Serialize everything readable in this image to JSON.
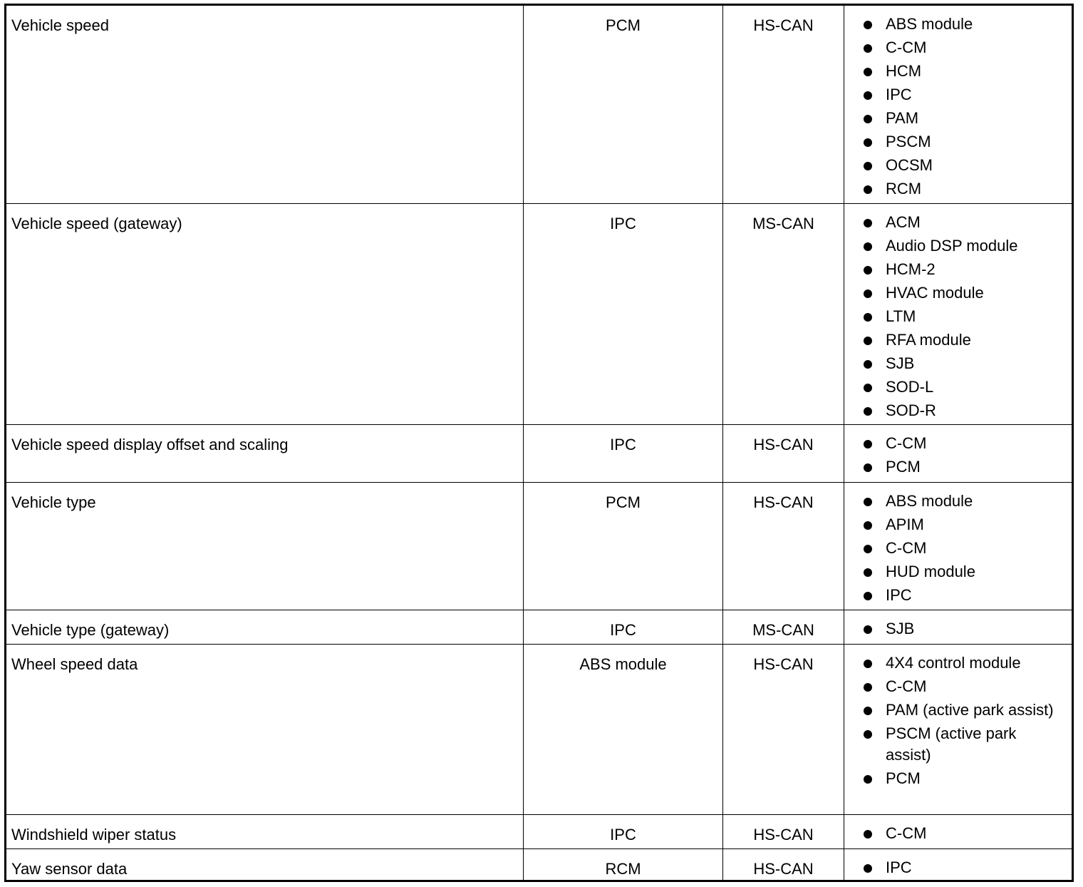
{
  "table": {
    "rows": [
      {
        "signal": "Vehicle speed",
        "originator": "PCM",
        "network": "HS-CAN",
        "receivers": [
          "ABS module",
          "C-CM",
          "HCM",
          "IPC",
          "PAM",
          "PSCM",
          "OCSM",
          "RCM"
        ]
      },
      {
        "signal": "Vehicle speed (gateway)",
        "originator": "IPC",
        "network": "MS-CAN",
        "receivers": [
          "ACM",
          "Audio DSP module",
          "HCM-2",
          "HVAC module",
          "LTM",
          "RFA module",
          "SJB",
          "SOD-L",
          "SOD-R"
        ]
      },
      {
        "signal": "Vehicle speed display offset and scaling",
        "originator": "IPC",
        "network": "HS-CAN",
        "receivers": [
          "C-CM",
          "PCM"
        ]
      },
      {
        "signal": "Vehicle type",
        "originator": "PCM",
        "network": "HS-CAN",
        "receivers": [
          "ABS module",
          "APIM",
          "C-CM",
          "HUD module",
          "IPC"
        ]
      },
      {
        "signal": "Vehicle type (gateway)",
        "originator": "IPC",
        "network": "MS-CAN",
        "receivers": [
          "SJB"
        ]
      },
      {
        "signal": "Wheel speed data",
        "originator": "ABS module",
        "network": "HS-CAN",
        "receivers": [
          "4X4 control module",
          "C-CM",
          "PAM (active park assist)",
          "PSCM (active park assist)",
          "PCM"
        ]
      },
      {
        "signal": "Windshield wiper status",
        "originator": "IPC",
        "network": "HS-CAN",
        "receivers": [
          "C-CM"
        ]
      },
      {
        "signal": "Yaw sensor data",
        "originator": "RCM",
        "network": "HS-CAN",
        "receivers": [
          "IPC"
        ]
      }
    ]
  }
}
